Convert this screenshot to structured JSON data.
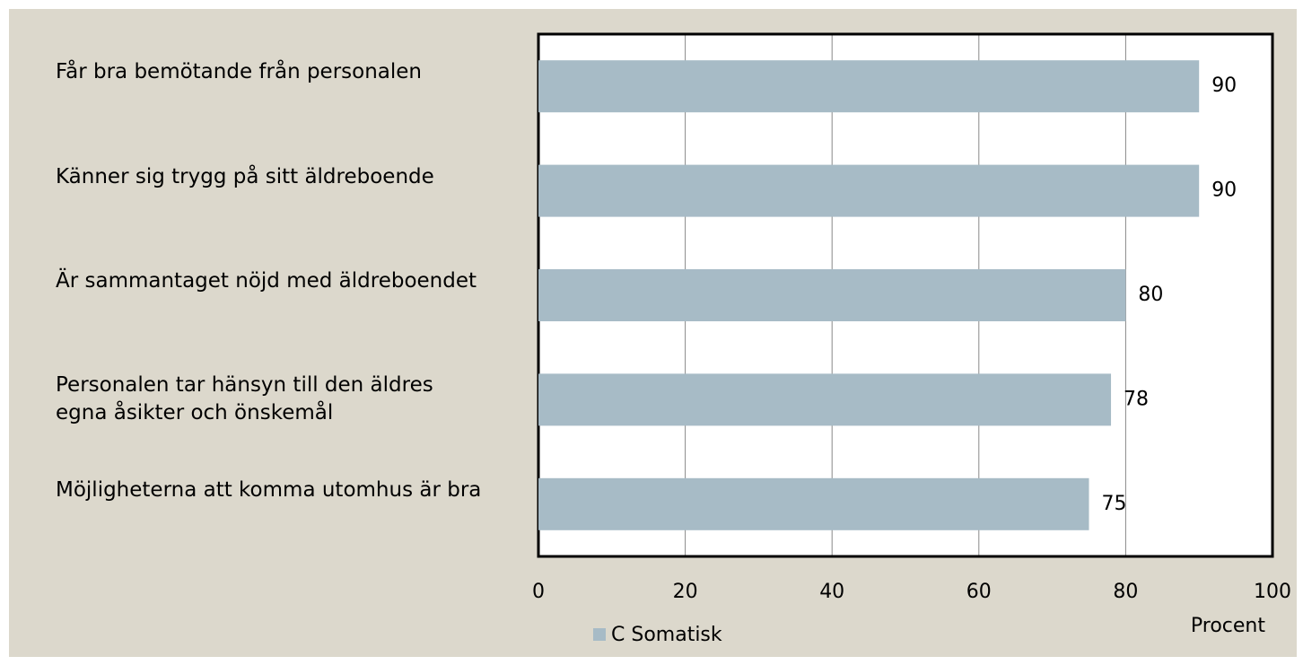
{
  "chart_data": {
    "type": "barh",
    "categories": [
      "Får bra bemötande från personalen",
      "Känner sig trygg på sitt äldreboende",
      "Är sammantaget nöjd med äldreboendet",
      "Personalen tar hänsyn till den äldres egna åsikter och önskemål",
      "Möjligheterna att komma utomhus är bra"
    ],
    "series": [
      {
        "name": "C Somatisk",
        "color": "#a7bbc6",
        "values": [
          90,
          90,
          80,
          78,
          75
        ]
      }
    ],
    "xlim": [
      0,
      100
    ],
    "xticks": [
      0,
      20,
      40,
      60,
      80,
      100
    ],
    "xlabel": "Procent",
    "grid": true,
    "legend": "bottom"
  }
}
